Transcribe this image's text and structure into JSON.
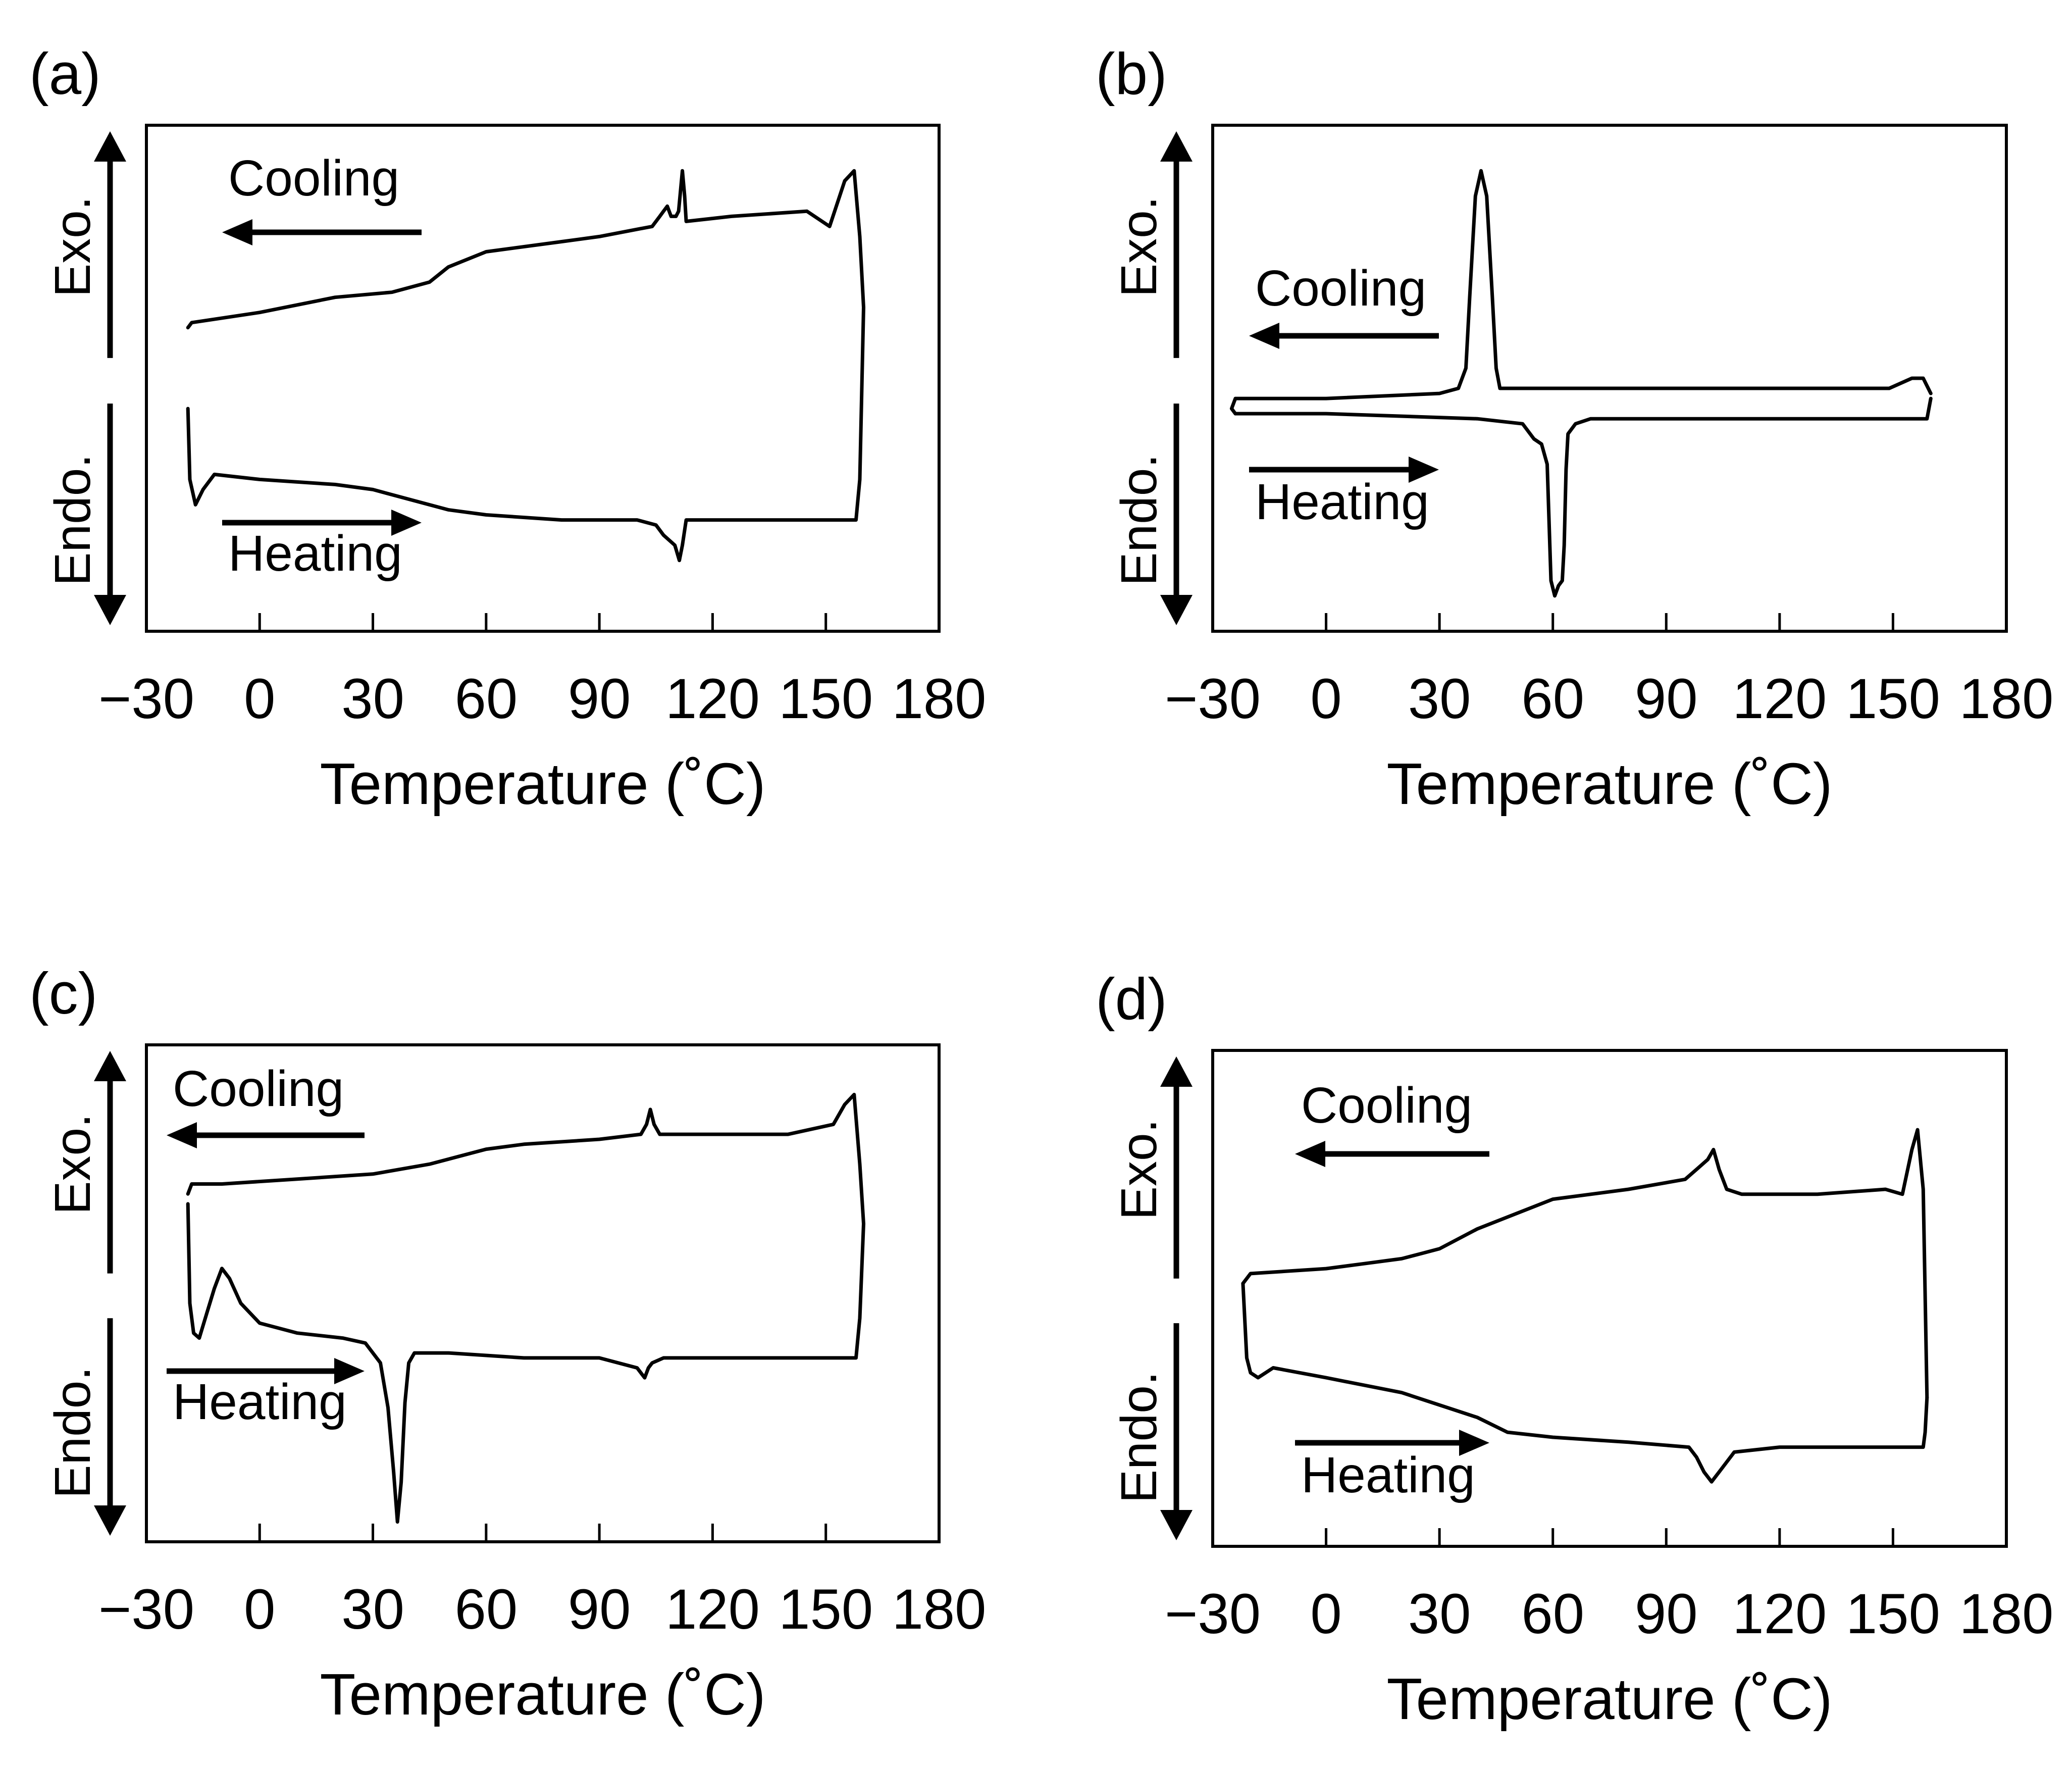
{
  "figure": {
    "x_axis_label": "Temperature (˚C)",
    "y_axis_up_label": "Exo.",
    "y_axis_down_label": "Endo.",
    "cooling_label": "Cooling",
    "heating_label": "Heating",
    "tick_labels": [
      "−30",
      "0",
      "30",
      "60",
      "90",
      "120",
      "150",
      "180"
    ]
  },
  "chart_data": [
    {
      "panel": "(a)",
      "type": "line",
      "title": "(a)",
      "xlabel": "Temperature (˚C)",
      "ylabel": "Exo. / Endo.",
      "xlim": [
        -30,
        180
      ],
      "ylim": [
        0,
        1
      ],
      "ticks": [
        -30,
        0,
        30,
        60,
        90,
        120,
        150,
        180
      ],
      "series": [
        {
          "name": "Cooling",
          "x": [
            160,
            159,
            157.5,
            155,
            151,
            145,
            125,
            113,
            112.6,
            112,
            111,
            110.3,
            109,
            108,
            107,
            106,
            104,
            90,
            80,
            60,
            50,
            45,
            35,
            20,
            0,
            -18,
            -19
          ],
          "y": [
            0.64,
            0.78,
            0.91,
            0.89,
            0.8,
            0.83,
            0.82,
            0.81,
            0.86,
            0.91,
            0.83,
            0.82,
            0.82,
            0.84,
            0.83,
            0.82,
            0.8,
            0.78,
            0.77,
            0.75,
            0.72,
            0.69,
            0.67,
            0.66,
            0.63,
            0.61,
            0.6
          ]
        },
        {
          "name": "Heating",
          "x": [
            -19,
            -18.5,
            -17,
            -15,
            -12,
            0,
            20,
            30,
            40,
            50,
            60,
            80,
            100,
            105,
            107,
            110,
            111.2,
            112,
            113,
            120,
            140,
            158,
            159,
            160
          ],
          "y": [
            0.44,
            0.3,
            0.25,
            0.28,
            0.31,
            0.3,
            0.29,
            0.28,
            0.26,
            0.24,
            0.23,
            0.22,
            0.22,
            0.21,
            0.19,
            0.17,
            0.14,
            0.17,
            0.22,
            0.22,
            0.22,
            0.22,
            0.3,
            0.64
          ]
        }
      ]
    },
    {
      "panel": "(b)",
      "type": "line",
      "title": "(b)",
      "xlabel": "Temperature (˚C)",
      "ylabel": "Exo. / Endo.",
      "xlim": [
        -30,
        180
      ],
      "ylim": [
        0,
        1
      ],
      "ticks": [
        -30,
        0,
        30,
        60,
        90,
        120,
        150,
        180
      ],
      "series": [
        {
          "name": "Cooling",
          "x": [
            160,
            158,
            155,
            152,
            149,
            140,
            100,
            60,
            46,
            45,
            44,
            42.5,
            41,
            39.5,
            38,
            37,
            35,
            30,
            0,
            -20,
            -24,
            -25,
            -24
          ],
          "y": [
            0.47,
            0.5,
            0.5,
            0.49,
            0.48,
            0.48,
            0.48,
            0.48,
            0.48,
            0.52,
            0.66,
            0.86,
            0.91,
            0.86,
            0.66,
            0.52,
            0.48,
            0.47,
            0.46,
            0.46,
            0.46,
            0.44,
            0.43
          ]
        },
        {
          "name": "Heating",
          "x": [
            -24,
            0,
            40,
            52,
            55,
            57,
            58.5,
            59.5,
            60.5,
            61.5,
            62.5,
            63,
            63.5,
            64,
            66,
            70,
            100,
            159,
            160
          ],
          "y": [
            0.43,
            0.43,
            0.42,
            0.41,
            0.38,
            0.37,
            0.33,
            0.1,
            0.07,
            0.09,
            0.1,
            0.17,
            0.32,
            0.39,
            0.41,
            0.42,
            0.42,
            0.42,
            0.46
          ]
        }
      ]
    },
    {
      "panel": "(c)",
      "type": "line",
      "title": "(c)",
      "xlabel": "Temperature (˚C)",
      "ylabel": "Exo. / Endo.",
      "xlim": [
        -30,
        180
      ],
      "ylim": [
        0,
        1
      ],
      "ticks": [
        -30,
        0,
        30,
        60,
        90,
        120,
        150,
        180
      ],
      "series": [
        {
          "name": "Cooling",
          "x": [
            160,
            159,
            157.5,
            155,
            152,
            140,
            106,
            104.5,
            103.5,
            102.5,
            101,
            90,
            70,
            60,
            45,
            30,
            10,
            -10,
            -18,
            -19
          ],
          "y": [
            0.64,
            0.76,
            0.9,
            0.88,
            0.84,
            0.82,
            0.82,
            0.84,
            0.87,
            0.84,
            0.82,
            0.81,
            0.8,
            0.79,
            0.76,
            0.74,
            0.73,
            0.72,
            0.72,
            0.7
          ]
        },
        {
          "name": "Heating",
          "x": [
            -19,
            -18.5,
            -17.5,
            -16,
            -14,
            -12,
            -10,
            -8,
            -5,
            0,
            10,
            22,
            28,
            32,
            34,
            35.5,
            36.5,
            37.5,
            38.5,
            39.5,
            41,
            43,
            50,
            70,
            90,
            100,
            102,
            103,
            104,
            107,
            120,
            150,
            158,
            159,
            160
          ],
          "y": [
            0.68,
            0.48,
            0.42,
            0.41,
            0.46,
            0.51,
            0.55,
            0.53,
            0.48,
            0.44,
            0.42,
            0.41,
            0.4,
            0.36,
            0.27,
            0.14,
            0.04,
            0.12,
            0.28,
            0.36,
            0.38,
            0.38,
            0.38,
            0.37,
            0.37,
            0.35,
            0.33,
            0.35,
            0.36,
            0.37,
            0.37,
            0.37,
            0.37,
            0.45,
            0.64
          ]
        }
      ]
    },
    {
      "panel": "(d)",
      "type": "line",
      "title": "(d)",
      "xlabel": "Temperature (˚C)",
      "ylabel": "Exo. / Endo.",
      "xlim": [
        -30,
        180
      ],
      "ylim": [
        0,
        1
      ],
      "ticks": [
        -30,
        0,
        30,
        60,
        90,
        120,
        150,
        180
      ],
      "series": [
        {
          "name": "Cooling",
          "x": [
            159,
            158,
            156.5,
            155,
            152.5,
            148,
            130,
            110,
            106,
            104,
            102.5,
            101,
            98,
            95,
            80,
            60,
            40,
            30,
            25,
            20,
            10,
            0,
            -20,
            -22
          ],
          "y": [
            0.3,
            0.72,
            0.84,
            0.8,
            0.71,
            0.72,
            0.71,
            0.71,
            0.72,
            0.76,
            0.8,
            0.78,
            0.76,
            0.74,
            0.72,
            0.7,
            0.64,
            0.6,
            0.59,
            0.58,
            0.57,
            0.56,
            0.55,
            0.53
          ]
        },
        {
          "name": "Heating",
          "x": [
            -22,
            -21,
            -20,
            -18,
            -16,
            -14,
            0,
            20,
            40,
            48,
            60,
            80,
            96,
            98,
            100,
            102,
            104,
            108,
            120,
            140,
            150,
            158,
            158.5,
            159
          ],
          "y": [
            0.53,
            0.38,
            0.35,
            0.34,
            0.35,
            0.36,
            0.34,
            0.31,
            0.26,
            0.23,
            0.22,
            0.21,
            0.2,
            0.18,
            0.15,
            0.13,
            0.15,
            0.19,
            0.2,
            0.2,
            0.2,
            0.2,
            0.23,
            0.3
          ]
        }
      ]
    }
  ]
}
